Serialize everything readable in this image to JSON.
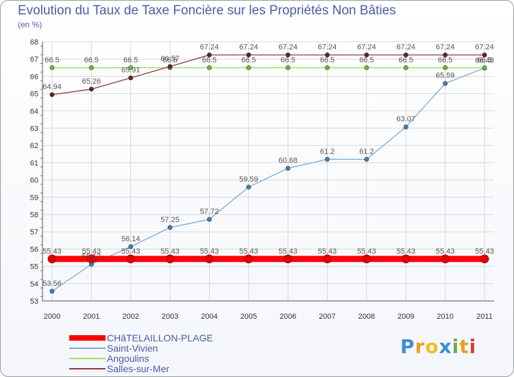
{
  "chart_data": {
    "type": "line",
    "title": "Evolution du Taux de Taxe Foncière sur les Propriétés Non Bâties",
    "ylabel": "(en %)",
    "xlabel": "",
    "ylim": [
      53,
      68
    ],
    "yticks": [
      53,
      54,
      55,
      56,
      57,
      58,
      59,
      60,
      61,
      62,
      63,
      64,
      65,
      66,
      67,
      68
    ],
    "x": [
      "2000",
      "2001",
      "2002",
      "2003",
      "2004",
      "2005",
      "2006",
      "2007",
      "2008",
      "2009",
      "2010",
      "2011"
    ],
    "series": [
      {
        "name": "CHâTELAILLON-PLAGE",
        "color": "#ff0000",
        "marker_color": "#dd0000",
        "values": [
          55.43,
          55.43,
          55.43,
          55.43,
          55.43,
          55.43,
          55.43,
          55.43,
          55.43,
          55.43,
          55.43,
          55.43
        ],
        "labels": [
          "55.43",
          "55.43",
          "55.43",
          "55.43",
          "55.43",
          "55.43",
          "55.43",
          "55.43",
          "55.43",
          "55.43",
          "55.43",
          "55.43"
        ]
      },
      {
        "name": "Saint-Vivien",
        "color": "#7aa8d6",
        "marker_color": "#3f7fb8",
        "values": [
          53.56,
          55.12,
          56.14,
          57.25,
          57.72,
          59.59,
          60.68,
          61.2,
          61.2,
          63.07,
          65.59,
          66.48
        ],
        "labels": [
          "53.56",
          "55.12",
          "56.14",
          "57.25",
          "57.72",
          "59.59",
          "60.68",
          "61.2",
          "61.2",
          "63.07",
          "65.59",
          "66.48"
        ]
      },
      {
        "name": "Angoulins",
        "color": "#99e060",
        "marker_color": "#66bb33",
        "values": [
          66.5,
          66.5,
          66.5,
          66.5,
          66.5,
          66.5,
          66.5,
          66.5,
          66.5,
          66.5,
          66.5,
          66.5
        ],
        "labels": [
          "66.5",
          "66.5",
          "66.5",
          "66.5",
          "66.5",
          "66.5",
          "66.5",
          "66.5",
          "66.5",
          "66.5",
          "66.5",
          "66.5"
        ]
      },
      {
        "name": "Salles-sur-Mer",
        "color": "#8b3a3a",
        "marker_color": "#6b1f1f",
        "values": [
          64.94,
          65.26,
          65.91,
          66.57,
          67.24,
          67.24,
          67.24,
          67.24,
          67.24,
          67.24,
          67.24,
          67.24
        ],
        "labels": [
          "64.94",
          "65.26",
          "65.91",
          "66.57",
          "67.24",
          "67.24",
          "67.24",
          "67.24",
          "67.24",
          "67.24",
          "67.24",
          "67.24"
        ]
      }
    ]
  },
  "logo": [
    "P",
    "r",
    "o",
    "x",
    "i",
    "t",
    "i"
  ]
}
